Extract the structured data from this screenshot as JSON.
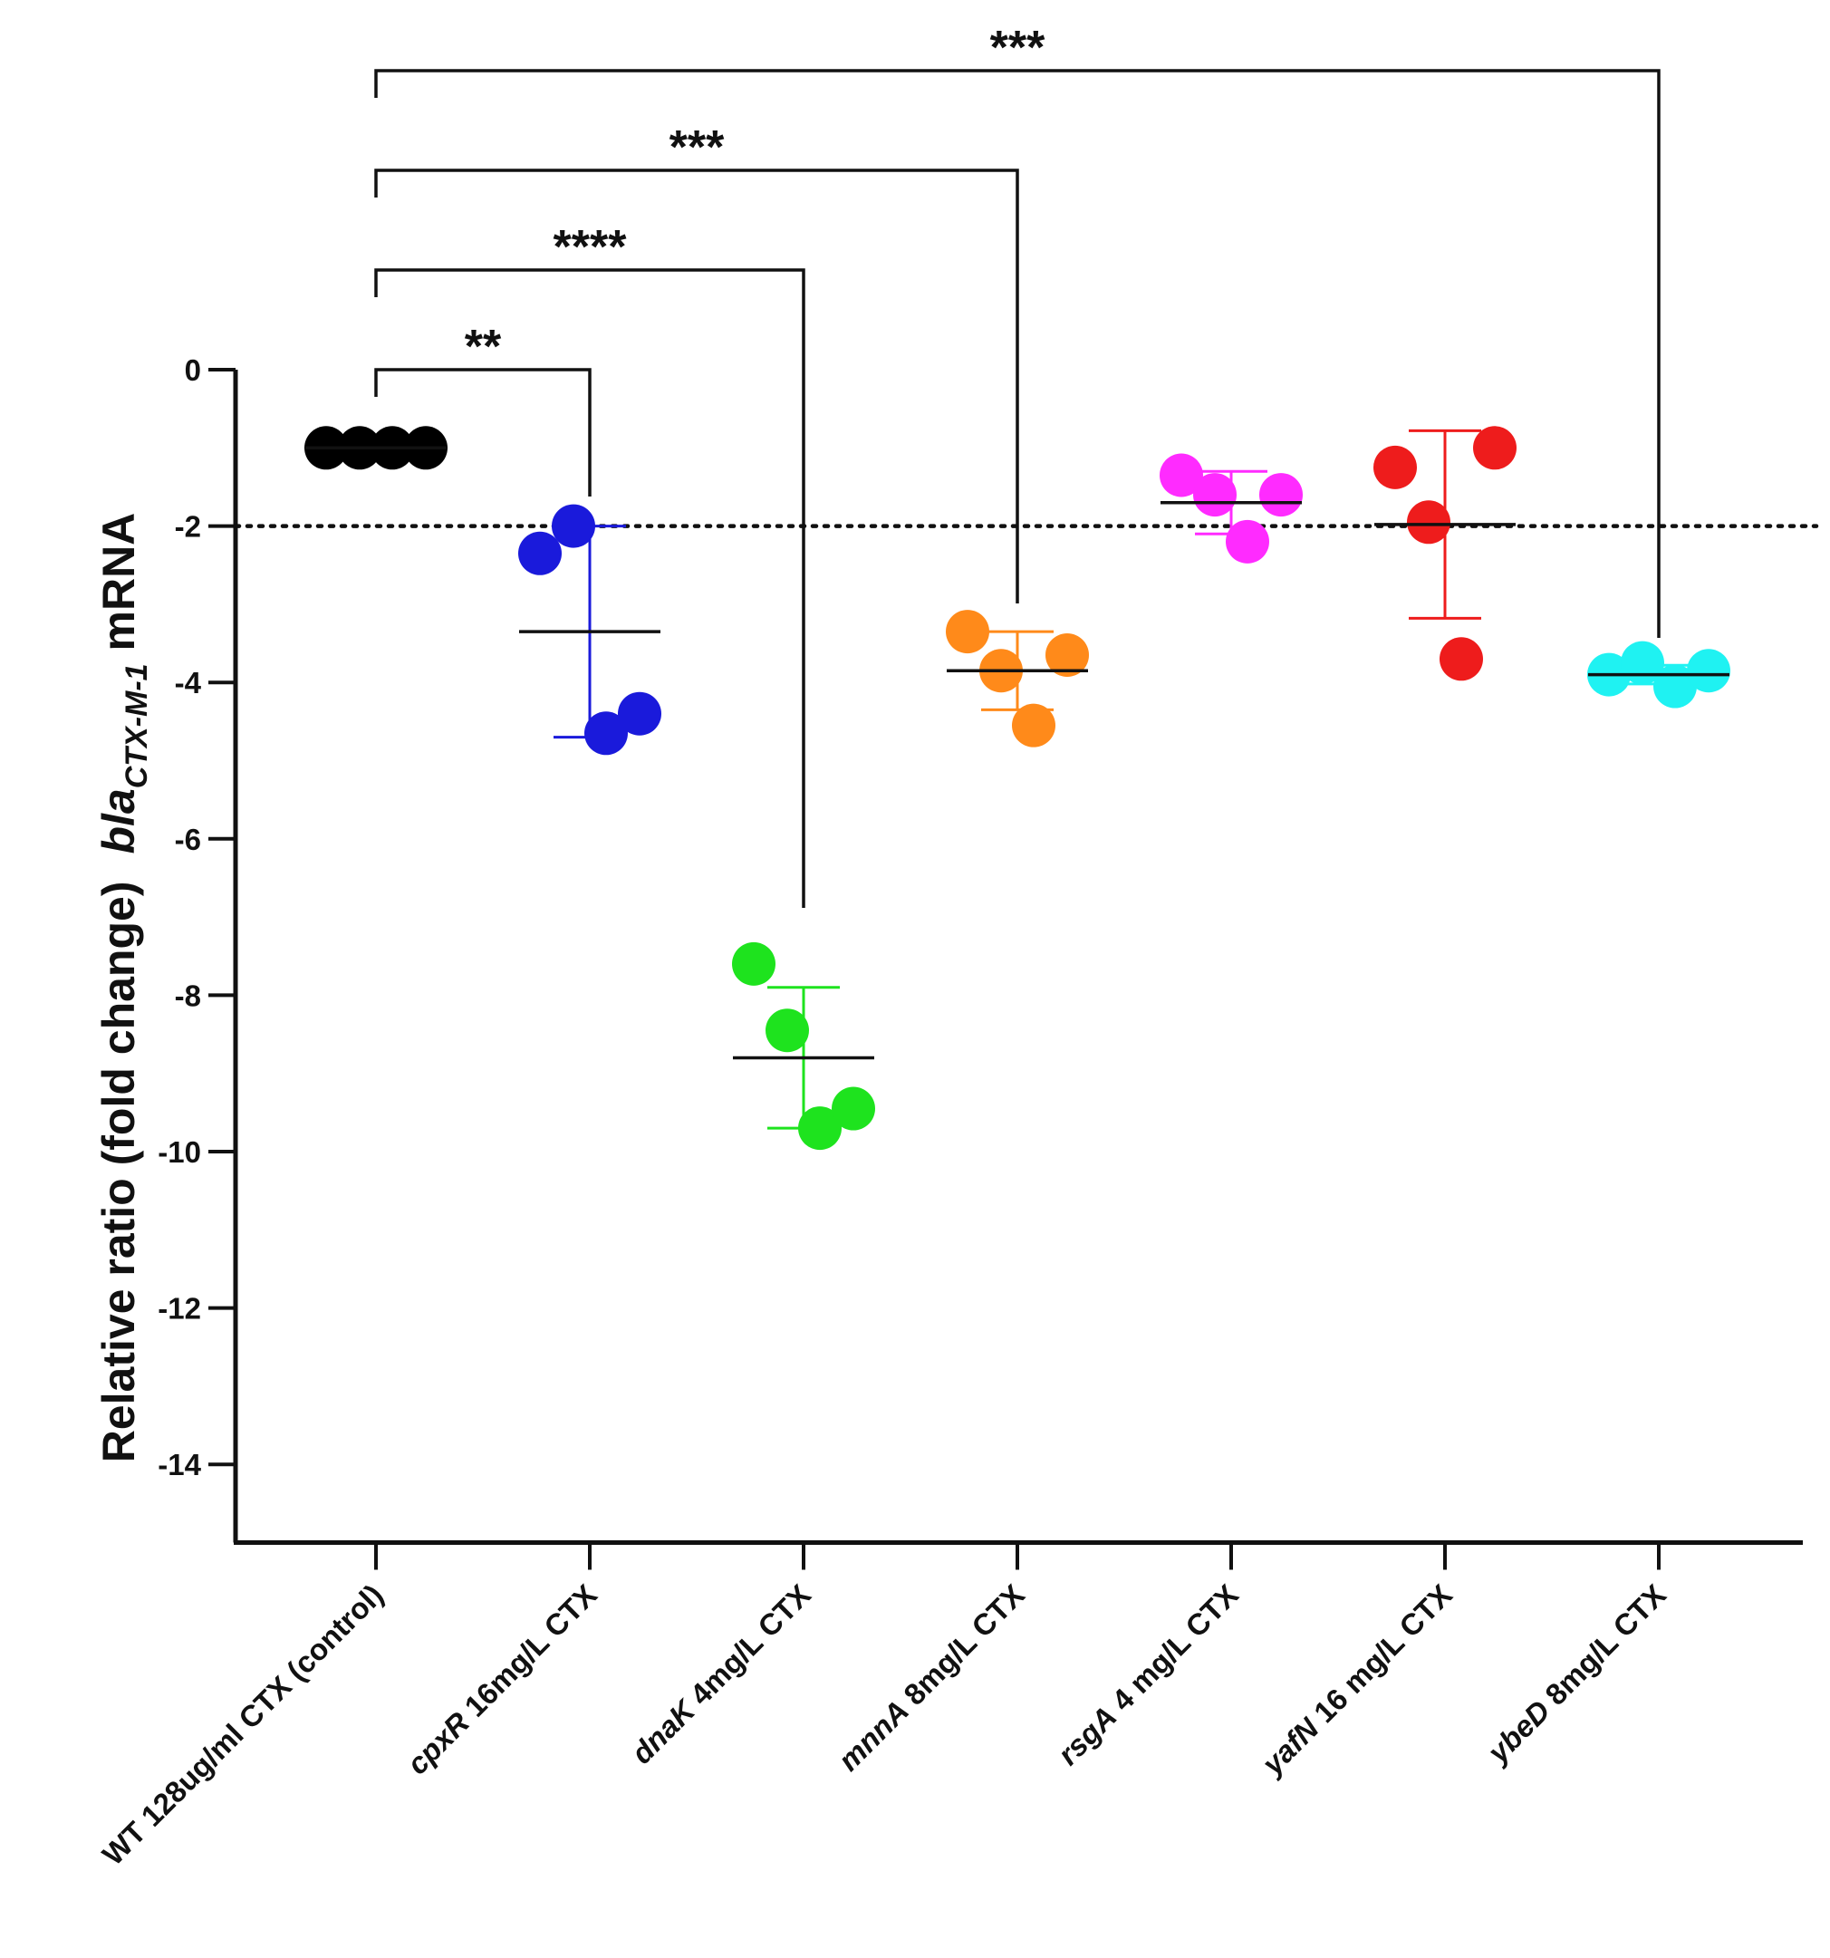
{
  "chart_data": {
    "type": "scatter",
    "ylabel": {
      "prefix": "Relative ratio (fold change)",
      "gene": "bla",
      "subscript": "CTX-M-1",
      "suffix": " mRNA"
    },
    "ylim": [
      -15,
      0
    ],
    "yticks": [
      "0",
      "-2",
      "-4",
      "-6",
      "-8",
      "-10",
      "-12",
      "-14"
    ],
    "ytick_values": [
      0,
      -2,
      -4,
      -6,
      -8,
      -10,
      -12,
      -14
    ],
    "threshold": -2,
    "groups": [
      {
        "gene": "",
        "label": "WT 128ug/ml CTX (control)",
        "color": "#000000",
        "values": [
          -1.0,
          -1.0,
          -1.0,
          -1.0
        ],
        "mean": -1.0,
        "sd": 0.0
      },
      {
        "gene": "cpxR",
        "label": " 16mg/L CTX",
        "color": "#1a1adb",
        "values": [
          -2.35,
          -2.0,
          -4.65,
          -4.4
        ],
        "mean": -3.35,
        "sd": 1.35
      },
      {
        "gene": "dnaK",
        "label": " 4mg/L CTX",
        "color": "#1ee31e",
        "values": [
          -7.6,
          -8.45,
          -9.7,
          -9.45
        ],
        "mean": -8.8,
        "sd": 0.9
      },
      {
        "gene": "mnnA",
        "label": " 8mg/L CTX",
        "color": "#ff8a1a",
        "values": [
          -3.35,
          -3.85,
          -4.55,
          -3.65
        ],
        "mean": -3.85,
        "sd": 0.5
      },
      {
        "gene": "rsgA",
        "label": " 4 mg/L CTX",
        "color": "#ff2bff",
        "values": [
          -1.35,
          -1.6,
          -2.2,
          -1.6
        ],
        "mean": -1.7,
        "sd": 0.4
      },
      {
        "gene": "yafN",
        "label": " 16 mg/L CTX",
        "color": "#ee1c1c",
        "values": [
          -1.25,
          -1.95,
          -3.7,
          -1.0
        ],
        "mean": -1.98,
        "sd": 1.2
      },
      {
        "gene": "ybeD",
        "label": " 8mg/L CTX",
        "color": "#1ff2f2",
        "values": [
          -3.9,
          -3.75,
          -4.05,
          -3.85
        ],
        "mean": -3.9,
        "sd": 0.12
      }
    ],
    "significance": [
      {
        "from": 0,
        "to": 1,
        "label": "**"
      },
      {
        "from": 0,
        "to": 2,
        "label": "****"
      },
      {
        "from": 0,
        "to": 3,
        "label": "***"
      },
      {
        "from": 0,
        "to": 6,
        "label": "***"
      }
    ]
  }
}
